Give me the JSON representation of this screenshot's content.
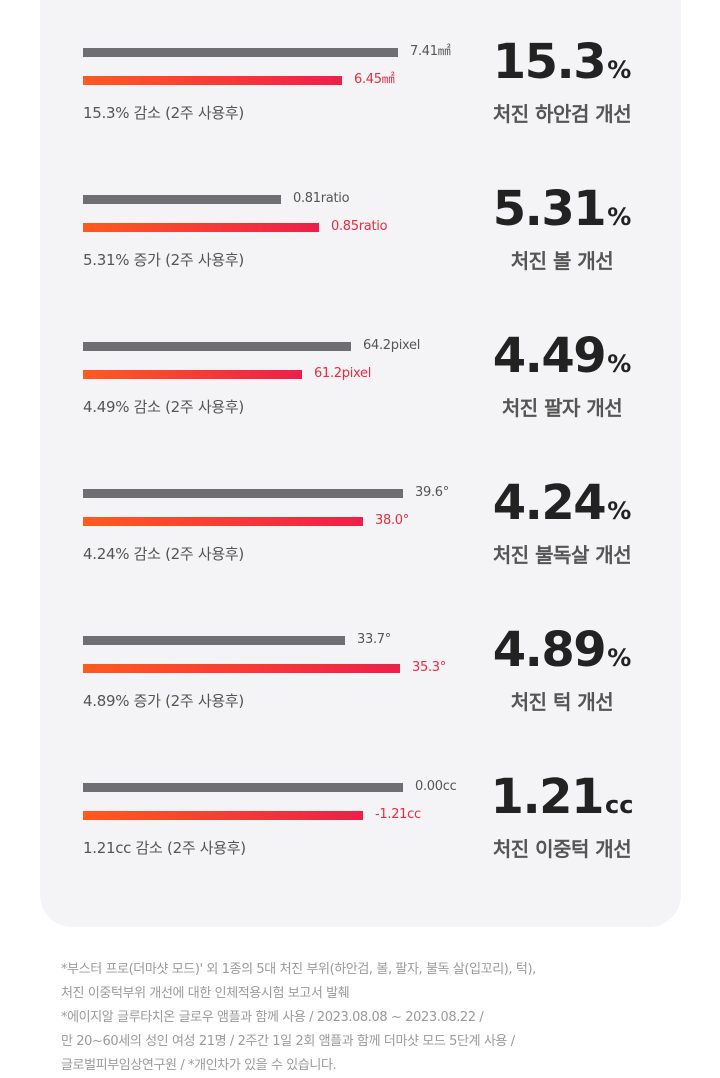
{
  "rows": [
    {
      "before": "7.41㎟",
      "after": "6.45㎟",
      "note": "15.3% 감소 (2주 사용후)",
      "big": "15.3",
      "unit": "%",
      "caption": "처진 하안검 개선"
    },
    {
      "before": "0.81ratio",
      "after": "0.85ratio",
      "note": "5.31% 증가 (2주 사용후)",
      "big": "5.31",
      "unit": "%",
      "caption": "처진 볼 개선"
    },
    {
      "before": "64.2pixel",
      "after": "61.2pixel",
      "note": "4.49% 감소 (2주 사용후)",
      "big": "4.49",
      "unit": "%",
      "caption": "처진 팔자 개선"
    },
    {
      "before": "39.6°",
      "after": "38.0°",
      "note": "4.24% 감소 (2주 사용후)",
      "big": "4.24",
      "unit": "%",
      "caption": "처진 불독살 개선"
    },
    {
      "before": "33.7°",
      "after": "35.3°",
      "note": "4.89% 증가 (2주 사용후)",
      "big": "4.89",
      "unit": "%",
      "caption": "처진 턱 개선"
    },
    {
      "before": "0.00cc",
      "after": "-1.21cc",
      "note": "1.21cc 감소 (2주 사용후)",
      "big": "1.21",
      "unit": "cc",
      "caption": "처진 이중턱 개선"
    }
  ],
  "footnotes": [
    "*부스터 프로(더마샷 모드)' 외 1종의 5대 처진 부위(하안검, 볼, 팔자, 불독 살(입꼬리), 턱),",
    "처진 이중턱부위 개선에 대한 인체적용시험 보고서 발췌",
    "*에이지알 글루타치온 글로우 앰플과 함께 사용 / 2023.08.08 ~ 2023.08.22 /",
    "만 20~60세의 성인 여성 21명 / 2주간 1일 2회 앰플과 함께 더마샷 모드 5단계 사용 /",
    "글로벌피부임상연구원 / *개인차가 있을 수 있습니다."
  ]
}
